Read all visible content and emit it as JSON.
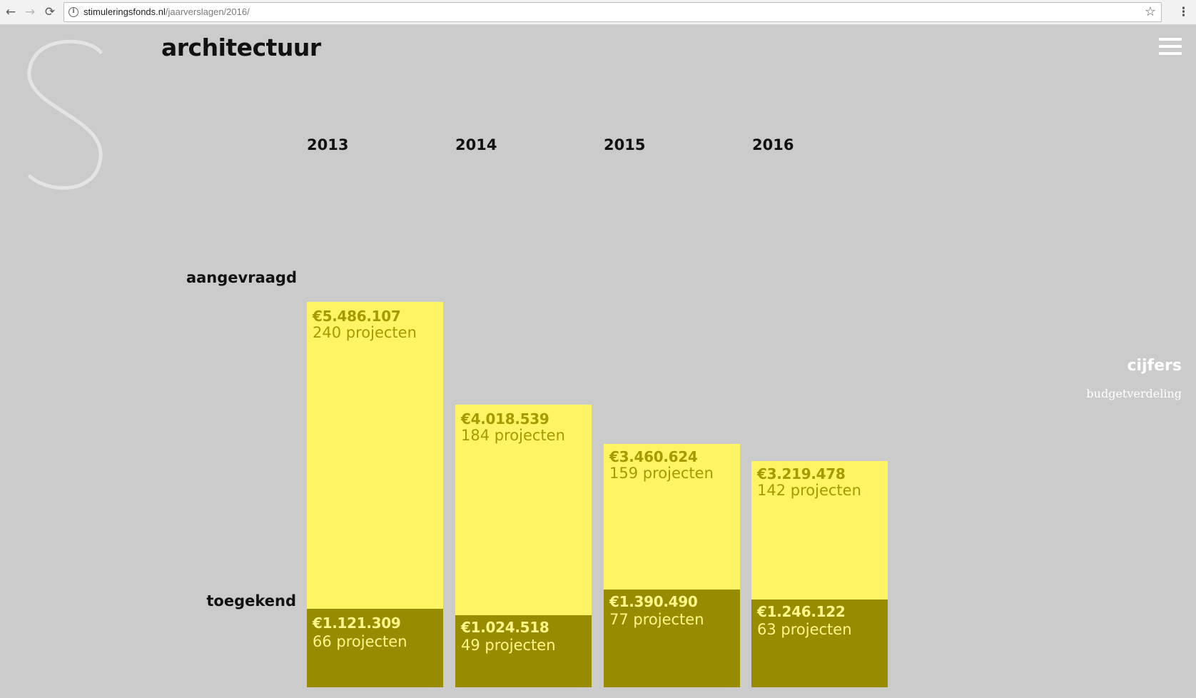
{
  "browser": {
    "url_host": "stimuleringsfonds.nl",
    "url_path": "/jaarverslagen/2016/",
    "back_icon": "←",
    "forward_icon": "→",
    "reload_icon": "⟳",
    "info_icon": "i",
    "star_icon": "☆",
    "menu_icon": "⋮"
  },
  "page": {
    "title": "architectuur",
    "row_labels": {
      "requested": "aangevraagd",
      "granted": "toegekend"
    },
    "side_nav": {
      "title": "cijfers",
      "subtitle": "budgetverdeling"
    }
  },
  "chart_data": {
    "type": "bar",
    "categories": [
      "2013",
      "2014",
      "2015",
      "2016"
    ],
    "series": [
      {
        "name": "aangevraagd",
        "values": [
          5486107,
          4018539,
          3460624,
          3219478
        ],
        "amount_labels": [
          "€5.486.107",
          "€4.018.539",
          "€3.460.624",
          "€3.219.478"
        ],
        "count_labels": [
          "240 projecten",
          "184 projecten",
          "159 projecten",
          "142 projecten"
        ]
      },
      {
        "name": "toegekend",
        "values": [
          1121309,
          1024518,
          1390490,
          1246122
        ],
        "amount_labels": [
          "€1.121.309",
          "€1.024.518",
          "€1.390.490",
          "€1.246.122"
        ],
        "count_labels": [
          "66 projecten",
          "49 projecten",
          "77 projecten",
          "63 projecten"
        ]
      }
    ],
    "colors": {
      "requested": "#fff464",
      "granted": "#978c00",
      "background": "#cbcbcb"
    }
  }
}
